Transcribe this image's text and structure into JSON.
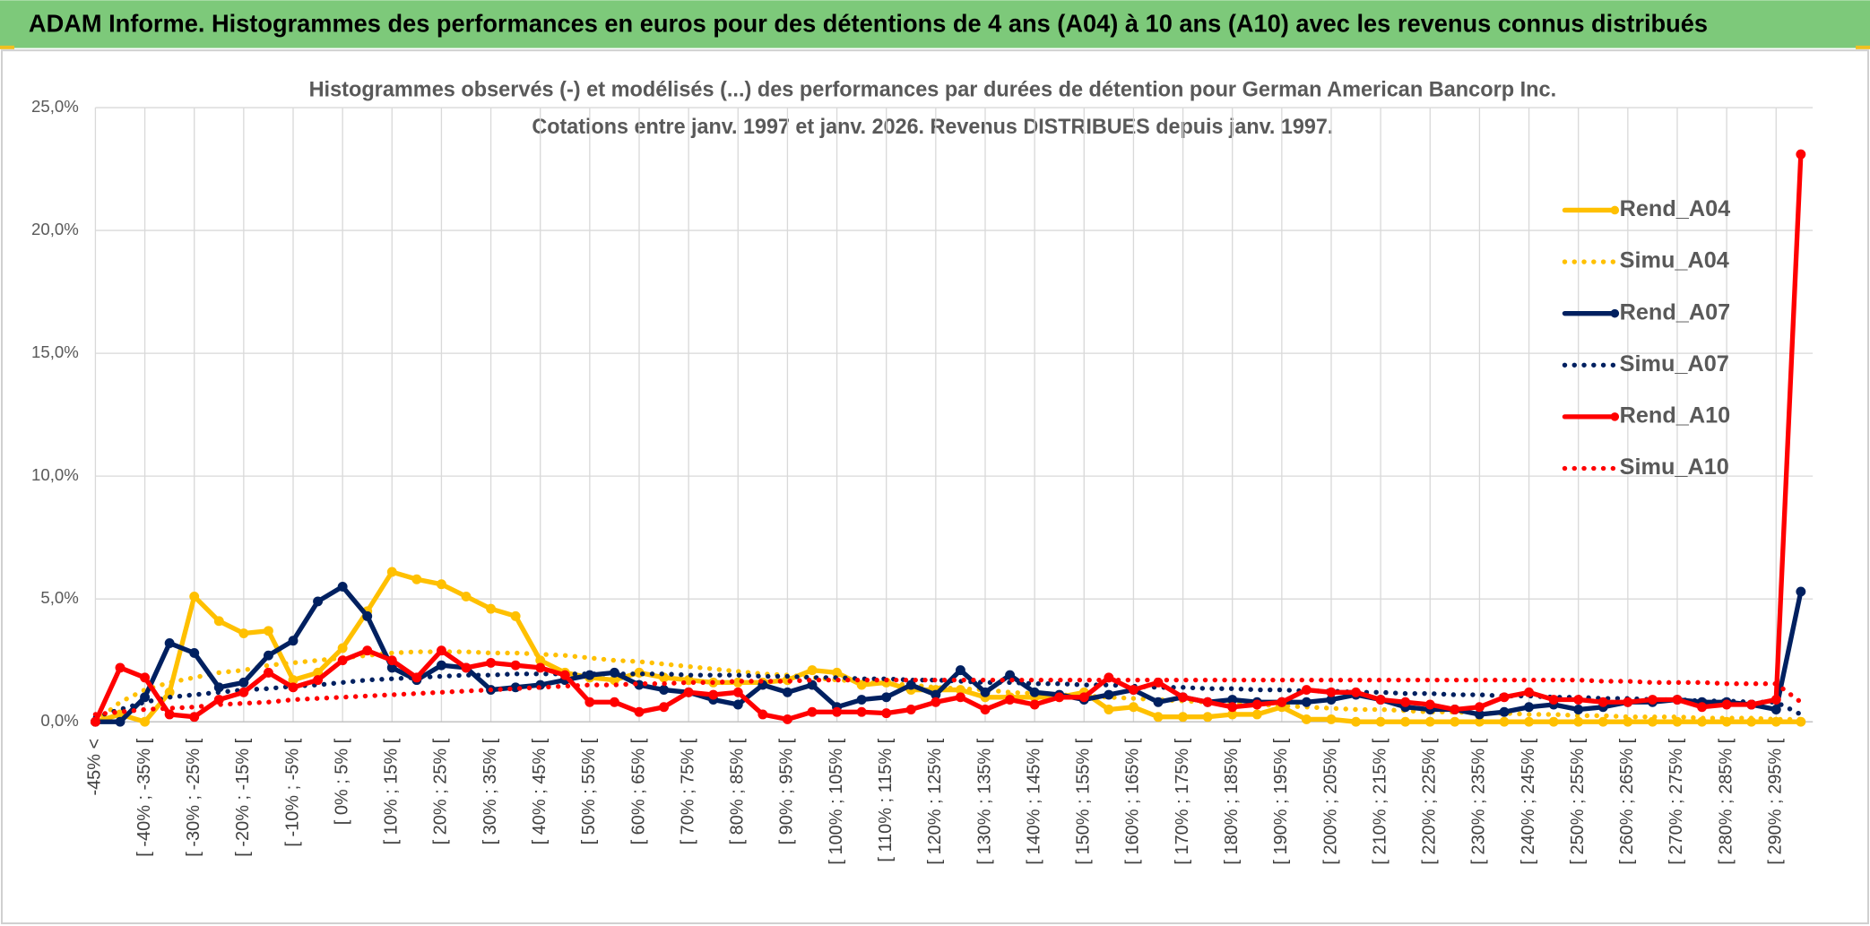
{
  "header": {
    "title": "ADAM Informe. Histogrammes des performances en euros pour des détentions de 4 ans (A04) à 10 ans (A10) avec les revenus connus distribués"
  },
  "chart_data": {
    "type": "line",
    "title": "Histogrammes observés (-) et modélisés (...) des performances par durées de détention pour German American Bancorp Inc.",
    "subtitle": "Cotations entre janv. 1997 et janv. 2026. Revenus DISTRIBUES depuis janv. 1997.",
    "categories": [
      "-45% <",
      null,
      "[ -40% ; -35% [",
      null,
      "[ -30% ; -25% [",
      null,
      "[ -20% ; -15% [",
      null,
      "[ -10% ; -5% [",
      null,
      "[ 0% ; 5% [",
      null,
      "[ 10% ; 15% [",
      null,
      "[ 20% ; 25% [",
      null,
      "[ 30% ; 35% [",
      null,
      "[ 40% ; 45% [",
      null,
      "[ 50% ; 55% [",
      null,
      "[ 60% ; 65% [",
      null,
      "[ 70% ; 75% [",
      null,
      "[ 80% ; 85% [",
      null,
      "[ 90% ; 95% [",
      null,
      "[ 100% ; 105% [",
      null,
      "[ 110% ; 115% [",
      null,
      "[ 120% ; 125% [",
      null,
      "[ 130% ; 135% [",
      null,
      "[ 140% ; 145% [",
      null,
      "[ 150% ; 155% [",
      null,
      "[ 160% ; 165% [",
      null,
      "[ 170% ; 175% [",
      null,
      "[ 180% ; 185% [",
      null,
      "[ 190% ; 195% [",
      null,
      "[ 200% ; 205% [",
      null,
      "[ 210% ; 215% [",
      null,
      "[ 220% ; 225% [",
      null,
      "[ 230% ; 235% [",
      null,
      "[ 240% ; 245% [",
      null,
      "[ 250% ; 255% [",
      null,
      "[ 260% ; 265% [",
      null,
      "[ 270% ; 275% [",
      null,
      "[ 280% ; 285% [",
      null,
      "[ 290% ; 295% [",
      null
    ],
    "ylim": [
      0,
      25
    ],
    "yticks": [
      {
        "value": 0,
        "label": "0,0%"
      },
      {
        "value": 5,
        "label": "5,0%"
      },
      {
        "value": 10,
        "label": "10,0%"
      },
      {
        "value": 15,
        "label": "15,0%"
      },
      {
        "value": 20,
        "label": "20,0%"
      },
      {
        "value": 25,
        "label": "25,0%"
      }
    ],
    "grid": true,
    "legend": "right",
    "series": [
      {
        "name": "Rend_A04",
        "color": "#ffc000",
        "line_style": "solid",
        "markers": true,
        "values": [
          0,
          0.3,
          0,
          1.2,
          5.1,
          4.1,
          3.6,
          3.7,
          1.7,
          2.0,
          3.0,
          4.5,
          6.1,
          5.8,
          5.6,
          5.1,
          4.6,
          4.3,
          2.5,
          2.0,
          1.8,
          1.7,
          2.0,
          1.8,
          1.7,
          1.6,
          1.6,
          1.6,
          1.7,
          2.1,
          2.0,
          1.5,
          1.6,
          1.3,
          1.3,
          1.3,
          1.0,
          1.0,
          1.0,
          1.0,
          1.2,
          0.5,
          0.6,
          0.2,
          0.2,
          0.2,
          0.3,
          0.3,
          0.6,
          0.1,
          0.1,
          0,
          0,
          0,
          0,
          0,
          0,
          0,
          0,
          0,
          0,
          0,
          0,
          0,
          0,
          0,
          0,
          0,
          0,
          0
        ]
      },
      {
        "name": "Simu_A04",
        "color": "#ffc000",
        "line_style": "dotted",
        "markers": false,
        "values": [
          0,
          0.8,
          1.3,
          1.6,
          1.8,
          2.0,
          2.1,
          2.3,
          2.4,
          2.5,
          2.6,
          2.7,
          2.8,
          2.85,
          2.85,
          2.85,
          2.8,
          2.8,
          2.75,
          2.7,
          2.6,
          2.5,
          2.45,
          2.35,
          2.25,
          2.15,
          2.05,
          1.95,
          1.9,
          1.8,
          1.7,
          1.65,
          1.55,
          1.5,
          1.4,
          1.35,
          1.3,
          1.2,
          1.15,
          1.1,
          1.05,
          1.0,
          0.95,
          0.9,
          0.85,
          0.8,
          0.75,
          0.7,
          0.65,
          0.6,
          0.55,
          0.5,
          0.5,
          0.45,
          0.4,
          0.4,
          0.35,
          0.35,
          0.3,
          0.3,
          0.25,
          0.25,
          0.2,
          0.2,
          0.2,
          0.15,
          0.15,
          0.15,
          0.1,
          0.1
        ]
      },
      {
        "name": "Rend_A07",
        "color": "#002060",
        "line_style": "solid",
        "markers": true,
        "values": [
          0,
          0,
          1.0,
          3.2,
          2.8,
          1.4,
          1.6,
          2.7,
          3.3,
          4.9,
          5.5,
          4.3,
          2.2,
          1.7,
          2.3,
          2.2,
          1.3,
          1.4,
          1.5,
          1.7,
          1.9,
          2.0,
          1.5,
          1.3,
          1.2,
          0.9,
          0.7,
          1.5,
          1.2,
          1.5,
          0.6,
          0.9,
          1.0,
          1.5,
          1.1,
          2.1,
          1.2,
          1.9,
          1.2,
          1.1,
          0.9,
          1.1,
          1.3,
          0.8,
          1.0,
          0.8,
          0.9,
          0.8,
          0.8,
          0.8,
          0.9,
          1.1,
          0.9,
          0.6,
          0.5,
          0.5,
          0.3,
          0.4,
          0.6,
          0.7,
          0.5,
          0.6,
          0.8,
          0.8,
          0.9,
          0.8,
          0.8,
          0.7,
          0.5,
          5.3
        ]
      },
      {
        "name": "Simu_A07",
        "color": "#002060",
        "line_style": "dotted",
        "markers": false,
        "values": [
          0.2,
          0.5,
          0.8,
          1.0,
          1.1,
          1.2,
          1.3,
          1.35,
          1.45,
          1.5,
          1.6,
          1.7,
          1.75,
          1.8,
          1.85,
          1.9,
          1.9,
          1.95,
          1.95,
          1.95,
          1.95,
          1.95,
          1.95,
          1.95,
          1.9,
          1.9,
          1.9,
          1.85,
          1.85,
          1.8,
          1.8,
          1.75,
          1.75,
          1.7,
          1.7,
          1.65,
          1.6,
          1.6,
          1.55,
          1.55,
          1.5,
          1.5,
          1.45,
          1.4,
          1.4,
          1.35,
          1.35,
          1.3,
          1.3,
          1.25,
          1.25,
          1.2,
          1.2,
          1.15,
          1.15,
          1.1,
          1.1,
          1.05,
          1.05,
          1.0,
          1.0,
          0.95,
          0.95,
          0.9,
          0.9,
          0.85,
          0.85,
          0.8,
          0.8,
          0.3
        ]
      },
      {
        "name": "Rend_A10",
        "color": "#ff0000",
        "line_style": "solid",
        "markers": true,
        "values": [
          0,
          2.2,
          1.8,
          0.3,
          0.2,
          0.9,
          1.2,
          2.0,
          1.4,
          1.7,
          2.5,
          2.9,
          2.5,
          1.8,
          2.9,
          2.2,
          2.4,
          2.3,
          2.2,
          1.9,
          0.8,
          0.8,
          0.4,
          0.6,
          1.2,
          1.1,
          1.2,
          0.3,
          0.1,
          0.4,
          0.4,
          0.4,
          0.35,
          0.5,
          0.8,
          1.0,
          0.5,
          0.9,
          0.7,
          1.0,
          1.0,
          1.8,
          1.3,
          1.6,
          1.0,
          0.8,
          0.6,
          0.7,
          0.8,
          1.3,
          1.2,
          1.2,
          0.9,
          0.8,
          0.7,
          0.5,
          0.6,
          1.0,
          1.2,
          0.9,
          0.9,
          0.8,
          0.8,
          0.9,
          0.9,
          0.6,
          0.7,
          0.7,
          0.9,
          23.1
        ]
      },
      {
        "name": "Simu_A10",
        "color": "#ff0000",
        "line_style": "dotted",
        "markers": false,
        "values": [
          0.3,
          0.4,
          0.5,
          0.55,
          0.6,
          0.7,
          0.75,
          0.8,
          0.9,
          0.95,
          1.0,
          1.05,
          1.1,
          1.15,
          1.2,
          1.25,
          1.3,
          1.35,
          1.4,
          1.45,
          1.5,
          1.5,
          1.55,
          1.55,
          1.6,
          1.6,
          1.65,
          1.65,
          1.65,
          1.7,
          1.7,
          1.7,
          1.7,
          1.7,
          1.7,
          1.7,
          1.7,
          1.7,
          1.7,
          1.7,
          1.7,
          1.7,
          1.7,
          1.7,
          1.7,
          1.7,
          1.7,
          1.7,
          1.7,
          1.7,
          1.7,
          1.7,
          1.7,
          1.7,
          1.7,
          1.7,
          1.7,
          1.7,
          1.7,
          1.7,
          1.7,
          1.65,
          1.65,
          1.6,
          1.6,
          1.6,
          1.55,
          1.55,
          1.55,
          0.8
        ]
      }
    ]
  }
}
